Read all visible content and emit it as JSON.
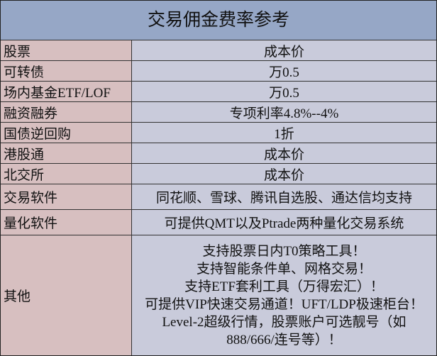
{
  "title": "交易佣金费率参考",
  "rows": [
    {
      "key": "股票",
      "value": "成本价"
    },
    {
      "key": "可转债",
      "value": "万0.5"
    },
    {
      "key": "场内基金ETF/LOF",
      "value": "万0.5"
    },
    {
      "key": "融资融券",
      "value": "专项利率4.8%--4%"
    },
    {
      "key": "国债逆回购",
      "value": "1折"
    },
    {
      "key": "港股通",
      "value": "成本价"
    },
    {
      "key": "北交所",
      "value": "成本价"
    },
    {
      "key": "交易软件",
      "value": "同花顺、雪球、腾讯自选股、通达信均支持"
    },
    {
      "key": "量化软件",
      "value": "可提供QMT以及Ptrade两种量化交易系统"
    }
  ],
  "other": {
    "key": "其他",
    "lines": [
      "支持股票日内T0策略工具！",
      "支持智能条件单、网格交易！",
      "支持ETF套利工具（万得宏汇）！",
      "可提供VIP快速交易通道！UFT/LDP极速柜台！",
      "Level-2超级行情，股票账户可选靓号（如",
      "888/666/连号等）！"
    ]
  }
}
